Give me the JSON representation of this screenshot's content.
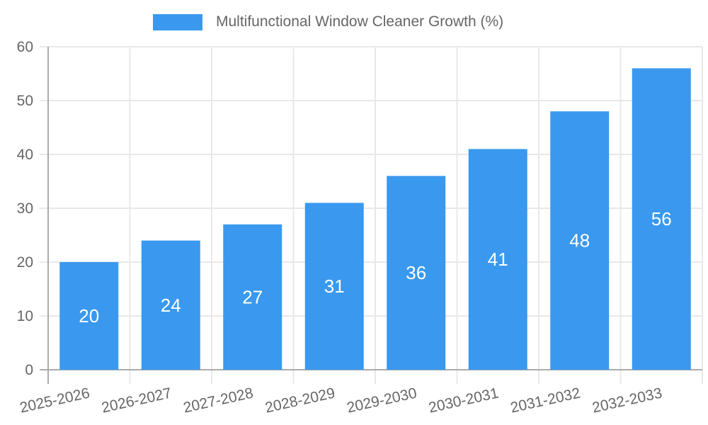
{
  "chart_data": {
    "type": "bar",
    "legend": "Multifunctional Window Cleaner Growth (%)",
    "legend_position": "top",
    "categories": [
      "2025-2026",
      "2026-2027",
      "2027-2028",
      "2028-2029",
      "2029-2030",
      "2030-2031",
      "2031-2032",
      "2032-2033"
    ],
    "values": [
      20,
      24,
      27,
      31,
      36,
      41,
      48,
      56
    ],
    "xlabel": "",
    "ylabel": "",
    "ylim": [
      0,
      60
    ],
    "y_ticks": [
      0,
      10,
      20,
      30,
      40,
      50,
      60
    ],
    "grid": true,
    "value_label_position": "inside-center",
    "colors": {
      "bar": "#3a99ee",
      "text": "#666666",
      "grid": "#e8e8e8",
      "axis": "#ababab",
      "value_label": "#ffffff",
      "background": "#ffffff"
    }
  }
}
